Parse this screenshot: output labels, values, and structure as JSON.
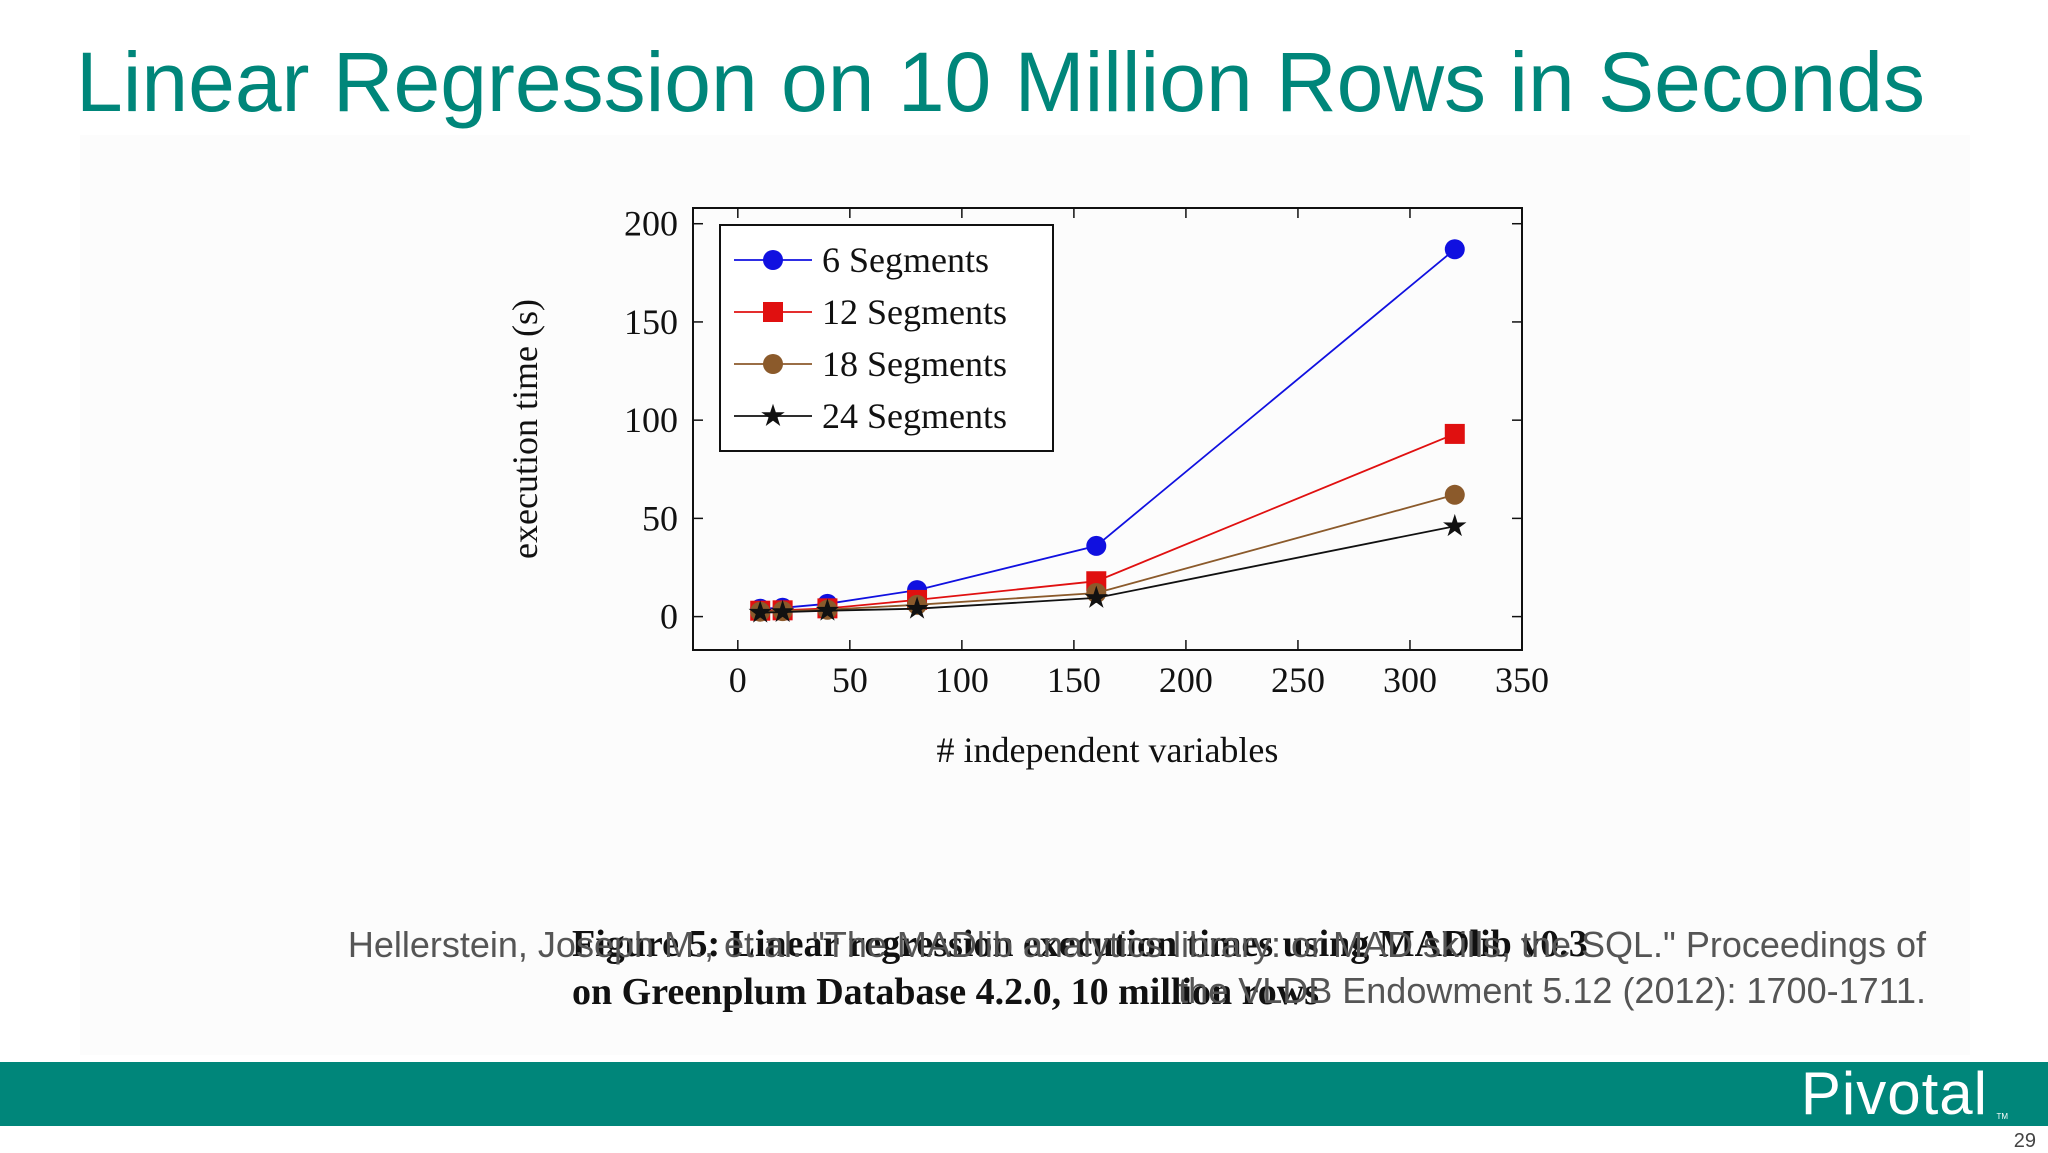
{
  "slide": {
    "title": "Linear Regression on 10 Million Rows in Seconds",
    "caption_line1": "Figure 5: Linear regression execution times using MADlib v0.3",
    "caption_line2": "on Greenplum Database 4.2.0, 10 million rows",
    "citation_line1": "Hellerstein, Joseph M., et al. \"The MADlib analytics library: or MAD skills, the SQL.\" Proceedings of",
    "citation_line2": "the VLDB Endowment 5.12 (2012): 1700-1711.",
    "brand": "Pivotal",
    "brand_tm": "TM",
    "page_number": "29"
  },
  "colors": {
    "title": "#00867a",
    "footer": "#00867a",
    "citation": "#555555"
  },
  "chart_data": {
    "type": "line",
    "title": "",
    "xlabel": "# independent variables",
    "ylabel": "execution time (s)",
    "xlim": [
      -20,
      350
    ],
    "ylim": [
      -17,
      208
    ],
    "xticks": [
      0,
      50,
      100,
      150,
      200,
      250,
      300,
      350
    ],
    "yticks": [
      0,
      50,
      100,
      150,
      200
    ],
    "grid": false,
    "legend_position": "top-left",
    "x": [
      10,
      20,
      40,
      80,
      160,
      320
    ],
    "series": [
      {
        "name": "6 Segments",
        "color": "#1010e0",
        "marker": "circle",
        "values": [
          4,
          4.5,
          6.5,
          13.5,
          36,
          187
        ]
      },
      {
        "name": "12 Segments",
        "color": "#e01010",
        "marker": "square",
        "values": [
          3,
          3.2,
          4.2,
          8.5,
          18,
          93
        ]
      },
      {
        "name": "18 Segments",
        "color": "#8b5a2b",
        "marker": "circle",
        "values": [
          2.5,
          2.8,
          3.5,
          6,
          12,
          62
        ]
      },
      {
        "name": "24 Segments",
        "color": "#111111",
        "marker": "star",
        "values": [
          2,
          2.3,
          3,
          4,
          9.5,
          46
        ]
      }
    ]
  }
}
